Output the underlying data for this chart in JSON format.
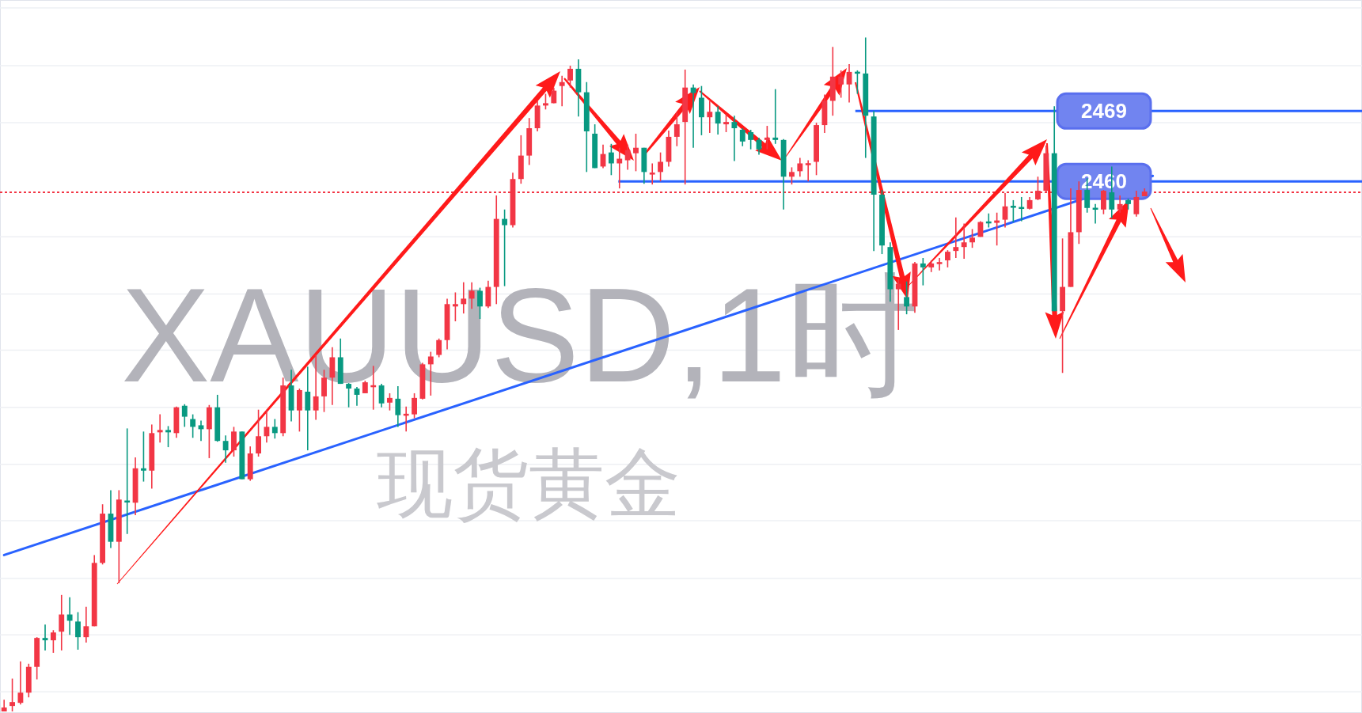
{
  "chart_data": {
    "type": "candlestick",
    "title": "XAUUSD,1时",
    "subtitle": "现货黄金",
    "categories": [
      null,
      null,
      null,
      null,
      null,
      null,
      null,
      null,
      null,
      null,
      null,
      null,
      null,
      null,
      null,
      null,
      null,
      null,
      null,
      null,
      null,
      null,
      null,
      null,
      null,
      null,
      null,
      null,
      null,
      null,
      null,
      null,
      null,
      null,
      null,
      null,
      null,
      null,
      null,
      null,
      null,
      null,
      null,
      null,
      null,
      null,
      null,
      null,
      null,
      null,
      null,
      null,
      null,
      null,
      null,
      null,
      null,
      null,
      null,
      null,
      null,
      null,
      null,
      null,
      null,
      null,
      null,
      null,
      null,
      null,
      null,
      null,
      null,
      null,
      null,
      null,
      null,
      null,
      null,
      null,
      null,
      null,
      null,
      null,
      null,
      null,
      null,
      null,
      null,
      null,
      null,
      null,
      null,
      null,
      null,
      null,
      null,
      null,
      null,
      null,
      null,
      null,
      null,
      null,
      null,
      null,
      null,
      null,
      null,
      null,
      null,
      null,
      null,
      null,
      null,
      null,
      null,
      null,
      null,
      null,
      null,
      null,
      null,
      null,
      null,
      null,
      null,
      null,
      null,
      null,
      null,
      null,
      null,
      null,
      null,
      null,
      null,
      null,
      null,
      null,
      null,
      null,
      null,
      null,
      null,
      null,
      null,
      null,
      null,
      null,
      null,
      null,
      null,
      null,
      null,
      null,
      null,
      null,
      null,
      null,
      null,
      null,
      null,
      null,
      null,
      null
    ],
    "ohlc": [
      [
        2392.2,
        2393.7,
        2392.2,
        2392.7
      ],
      [
        2392.9,
        2396.4,
        2392.2,
        2393.4
      ],
      [
        2393.3,
        2398.6,
        2393.1,
        2394.6
      ],
      [
        2394.6,
        2398.3,
        2394.0,
        2397.9
      ],
      [
        2397.9,
        2401.7,
        2396.3,
        2401.6
      ],
      [
        2401.6,
        2403.3,
        2400.0,
        2401.3
      ],
      [
        2401.3,
        2402.6,
        2399.7,
        2402.3
      ],
      [
        2402.4,
        2407.1,
        2400.0,
        2404.6
      ],
      [
        2404.6,
        2406.8,
        2402.0,
        2403.8
      ],
      [
        2403.7,
        2404.9,
        2400.1,
        2401.7
      ],
      [
        2401.7,
        2405.6,
        2401.0,
        2403.1
      ],
      [
        2403.1,
        2412.2,
        2403.1,
        2411.2
      ],
      [
        2411.2,
        2418.7,
        2411.0,
        2417.5
      ],
      [
        2417.5,
        2420.5,
        2413.1,
        2413.9
      ],
      [
        2413.9,
        2420.5,
        2408.6,
        2419.3
      ],
      [
        2419.1,
        2428.4,
        2414.9,
        2419.0
      ],
      [
        2418.9,
        2424.7,
        2417.3,
        2423.3
      ],
      [
        2423.3,
        2428.0,
        2421.6,
        2423.0
      ],
      [
        2423.0,
        2428.9,
        2420.7,
        2427.8
      ],
      [
        2427.9,
        2430.2,
        2426.6,
        2428.2
      ],
      [
        2428.2,
        2428.7,
        2426.0,
        2427.9
      ],
      [
        2427.8,
        2431.2,
        2427.2,
        2431.1
      ],
      [
        2431.3,
        2431.5,
        2428.6,
        2429.9
      ],
      [
        2429.6,
        2430.2,
        2427.2,
        2428.6
      ],
      [
        2428.8,
        2429.4,
        2426.8,
        2428.3
      ],
      [
        2428.3,
        2431.4,
        2424.6,
        2431.1
      ],
      [
        2431.1,
        2432.7,
        2426.7,
        2426.8
      ],
      [
        2426.8,
        2427.5,
        2424.0,
        2425.6
      ],
      [
        2425.6,
        2428.6,
        2424.8,
        2428.0
      ],
      [
        2428.0,
        2428.0,
        2421.9,
        2421.9
      ],
      [
        2421.9,
        2426.1,
        2421.7,
        2425.2
      ],
      [
        2425.2,
        2430.8,
        2424.8,
        2427.4
      ],
      [
        2427.4,
        2430.8,
        2426.6,
        2428.6
      ],
      [
        2428.6,
        2429.6,
        2427.1,
        2427.8
      ],
      [
        2427.8,
        2434.9,
        2427.4,
        2433.9
      ],
      [
        2433.9,
        2435.9,
        2429.3,
        2430.7
      ],
      [
        2430.7,
        2433.5,
        2428.0,
        2433.3
      ],
      [
        2433.1,
        2436.3,
        2425.6,
        2430.7
      ],
      [
        2430.7,
        2437.8,
        2429.5,
        2432.5
      ],
      [
        2432.5,
        2435.9,
        2430.5,
        2434.9
      ],
      [
        2434.9,
        2438.8,
        2431.4,
        2437.5
      ],
      [
        2437.5,
        2439.9,
        2434.1,
        2434.1
      ],
      [
        2434.1,
        2434.2,
        2431.1,
        2433.5
      ],
      [
        2433.5,
        2433.7,
        2431.3,
        2432.7
      ],
      [
        2432.9,
        2434.5,
        2432.9,
        2434.3
      ],
      [
        2433.7,
        2436.4,
        2430.8,
        2433.9
      ],
      [
        2433.9,
        2434.1,
        2431.1,
        2431.6
      ],
      [
        2431.7,
        2432.9,
        2430.7,
        2432.3
      ],
      [
        2432.2,
        2433.8,
        2428.6,
        2430.1
      ],
      [
        2430.1,
        2431.2,
        2428.0,
        2430.2
      ],
      [
        2430.2,
        2432.9,
        2429.7,
        2432.3
      ],
      [
        2432.2,
        2436.8,
        2432.1,
        2436.6
      ],
      [
        2436.6,
        2438.2,
        2432.6,
        2437.6
      ],
      [
        2437.8,
        2439.9,
        2437.5,
        2439.7
      ],
      [
        2439.7,
        2445.0,
        2438.5,
        2444.3
      ],
      [
        2444.0,
        2445.8,
        2442.1,
        2444.3
      ],
      [
        2444.3,
        2447.1,
        2443.1,
        2445.0
      ],
      [
        2445.0,
        2447.1,
        2443.7,
        2446.0
      ],
      [
        2446.0,
        2446.4,
        2442.4,
        2444.0
      ],
      [
        2444.0,
        2447.3,
        2443.8,
        2446.5
      ],
      [
        2446.5,
        2458.2,
        2444.3,
        2455.2
      ],
      [
        2455.2,
        2456.4,
        2446.6,
        2454.4
      ],
      [
        2454.4,
        2461.1,
        2454.1,
        2460.3
      ],
      [
        2460.3,
        2465.9,
        2459.7,
        2463.3
      ],
      [
        2463.3,
        2468.1,
        2462.1,
        2466.8
      ],
      [
        2466.8,
        2470.3,
        2466.4,
        2469.7
      ],
      [
        2469.7,
        2471.2,
        2469.2,
        2470.0
      ],
      [
        2470.0,
        2472.0,
        2470.0,
        2471.6
      ],
      [
        2472.2,
        2473.5,
        2469.6,
        2472.7
      ],
      [
        2472.9,
        2474.8,
        2472.0,
        2474.4
      ],
      [
        2474.4,
        2475.6,
        2468.3,
        2471.4
      ],
      [
        2471.4,
        2472.7,
        2461.2,
        2466.4
      ],
      [
        2466.1,
        2467.3,
        2461.7,
        2461.7
      ],
      [
        2461.9,
        2464.7,
        2461.7,
        2463.5
      ],
      [
        2463.7,
        2464.8,
        2460.8,
        2462.3
      ],
      [
        2462.3,
        2464.3,
        2459.1,
        2462.9
      ],
      [
        2462.7,
        2464.7,
        2461.5,
        2464.0
      ],
      [
        2463.6,
        2466.1,
        2461.3,
        2464.3
      ],
      [
        2464.3,
        2464.3,
        2459.7,
        2461.2
      ],
      [
        2460.9,
        2462.3,
        2459.6,
        2461.1
      ],
      [
        2461.2,
        2463.7,
        2460.0,
        2462.5
      ],
      [
        2462.5,
        2466.5,
        2461.9,
        2465.7
      ],
      [
        2465.7,
        2468.8,
        2464.5,
        2467.3
      ],
      [
        2467.6,
        2474.3,
        2459.6,
        2472.0
      ],
      [
        2472.0,
        2472.4,
        2464.3,
        2471.3
      ],
      [
        2470.7,
        2472.2,
        2465.9,
        2468.2
      ],
      [
        2468.2,
        2470.3,
        2466.2,
        2468.9
      ],
      [
        2468.9,
        2469.6,
        2466.0,
        2467.4
      ],
      [
        2467.3,
        2468.6,
        2466.3,
        2467.6
      ],
      [
        2467.6,
        2468.4,
        2462.6,
        2466.8
      ],
      [
        2466.6,
        2466.8,
        2464.5,
        2465.1
      ],
      [
        2466.3,
        2466.6,
        2464.1,
        2465.3
      ],
      [
        2465.3,
        2465.6,
        2463.4,
        2464.1
      ],
      [
        2465.3,
        2467.1,
        2464.1,
        2465.6
      ],
      [
        2465.6,
        2471.8,
        2464.8,
        2465.3
      ],
      [
        2465.3,
        2465.4,
        2456.4,
        2460.6
      ],
      [
        2460.6,
        2461.8,
        2459.6,
        2461.2
      ],
      [
        2461.3,
        2463.0,
        2460.6,
        2462.3
      ],
      [
        2462.1,
        2462.7,
        2460.0,
        2462.3
      ],
      [
        2462.5,
        2467.5,
        2460.8,
        2467.2
      ],
      [
        2467.2,
        2471.1,
        2466.2,
        2470.3
      ],
      [
        2470.3,
        2477.2,
        2468.4,
        2473.4
      ],
      [
        2472.4,
        2474.2,
        2470.7,
        2473.4
      ],
      [
        2472.4,
        2475.0,
        2470.1,
        2474.0
      ],
      [
        2474.0,
        2474.2,
        2471.2,
        2473.8
      ],
      [
        2473.8,
        2478.4,
        2463.0,
        2468.4
      ],
      [
        2468.3,
        2469.0,
        2451.1,
        2458.3
      ],
      [
        2458.3,
        2458.9,
        2450.7,
        2451.8
      ],
      [
        2451.6,
        2452.2,
        2444.6,
        2446.2
      ],
      [
        2446.2,
        2447.5,
        2441.0,
        2446.9
      ],
      [
        2445.2,
        2447.2,
        2443.0,
        2444.0
      ],
      [
        2444.0,
        2449.7,
        2443.2,
        2449.5
      ],
      [
        2449.5,
        2450.2,
        2446.7,
        2449.0
      ],
      [
        2449.0,
        2449.9,
        2448.4,
        2449.5
      ],
      [
        2449.5,
        2450.2,
        2448.6,
        2449.6
      ],
      [
        2449.9,
        2451.2,
        2449.0,
        2451.0
      ],
      [
        2451.1,
        2455.4,
        2450.2,
        2451.6
      ],
      [
        2451.6,
        2454.6,
        2450.1,
        2452.2
      ],
      [
        2452.2,
        2453.9,
        2451.5,
        2452.8
      ],
      [
        2452.9,
        2454.9,
        2452.9,
        2454.8
      ],
      [
        2454.8,
        2455.9,
        2454.1,
        2454.7
      ],
      [
        2454.7,
        2456.0,
        2451.8,
        2455.0
      ],
      [
        2455.1,
        2458.5,
        2454.1,
        2456.8
      ],
      [
        2456.8,
        2457.6,
        2454.8,
        2456.7
      ],
      [
        2456.7,
        2458.0,
        2454.9,
        2456.5
      ],
      [
        2456.5,
        2458.0,
        2456.4,
        2457.6
      ],
      [
        2457.7,
        2460.6,
        2457.6,
        2458.8
      ],
      [
        2458.8,
        2464.6,
        2458.6,
        2463.6
      ],
      [
        2463.6,
        2469.6,
        2443.4,
        2443.4
      ],
      [
        2443.4,
        2452.7,
        2435.5,
        2446.5
      ],
      [
        2446.5,
        2459.1,
        2446.5,
        2453.5
      ],
      [
        2453.5,
        2460.0,
        2452.0,
        2458.9
      ],
      [
        2458.9,
        2460.4,
        2456.0,
        2456.6
      ],
      [
        2456.6,
        2457.1,
        2454.6,
        2456.4
      ],
      [
        2456.4,
        2458.9,
        2455.8,
        2458.8
      ],
      [
        2458.6,
        2461.9,
        2455.3,
        2456.4
      ],
      [
        2456.4,
        2458.2,
        2456.0,
        2457.1
      ],
      [
        2457.6,
        2457.8,
        2456.4,
        2457.1
      ],
      [
        2455.8,
        2458.8,
        2455.5,
        2458.0
      ],
      [
        2458.1,
        2459.1,
        2458.1,
        2458.7
      ],
      null,
      null,
      null,
      null,
      null,
      null,
      null,
      null,
      null,
      null,
      null,
      null,
      null,
      null,
      null,
      null,
      null,
      null,
      null,
      null,
      null,
      null,
      null,
      null,
      null,
      null
    ],
    "series": [
      {
        "type": "line",
        "color": "#2962ff",
        "values": [
          2412.2,
          null,
          null,
          null,
          null,
          null,
          null,
          null,
          null,
          null,
          null,
          null,
          null,
          null,
          null,
          null,
          null,
          null,
          null,
          null,
          null,
          null,
          null,
          null,
          null,
          null,
          null,
          null,
          null,
          null,
          null,
          null,
          null,
          null,
          null,
          null,
          null,
          null,
          null,
          null,
          null,
          null,
          null,
          null,
          null,
          null,
          null,
          null,
          null,
          null,
          null,
          null,
          null,
          null,
          null,
          null,
          null,
          null,
          null,
          null,
          null,
          null,
          null,
          null,
          null,
          null,
          null,
          null,
          null,
          null,
          null,
          null,
          null,
          null,
          null,
          null,
          null,
          null,
          null,
          null,
          null,
          null,
          null,
          null,
          null,
          null,
          null,
          null,
          null,
          null,
          null,
          null,
          null,
          null,
          null,
          null,
          null,
          null,
          null,
          null,
          null,
          null,
          null,
          null,
          null,
          null,
          null,
          null,
          null,
          null,
          null,
          null,
          null,
          null,
          null,
          null,
          null,
          null,
          null,
          null,
          null,
          null,
          null,
          null,
          null,
          null,
          null,
          null,
          null,
          null,
          null,
          null,
          null,
          null,
          null,
          null,
          null,
          null,
          null,
          null,
          2460.7,
          null,
          null,
          null,
          null,
          null,
          null,
          null,
          null,
          null,
          null,
          null,
          null,
          null,
          null,
          null,
          null,
          null,
          null,
          null,
          null,
          null,
          null,
          null,
          null,
          null
        ]
      }
    ],
    "ylim": [
      2392.0,
      2483.2
    ],
    "yticks": [
      {
        "value": 2482.2,
        "label": null
      },
      {
        "value": 2474.8,
        "label": null
      },
      2469,
      {
        "value": 2467.5,
        "label": null
      },
      2460,
      {
        "value": 2452.9,
        "label": null
      },
      {
        "value": 2445.6,
        "label": null
      },
      {
        "value": 2438.4,
        "label": null
      },
      {
        "value": 2431.1,
        "label": null
      },
      {
        "value": 2423.8,
        "label": null
      },
      {
        "value": 2416.6,
        "label": null
      },
      {
        "value": 2409.2,
        "label": null
      },
      {
        "value": 2402.0,
        "label": null
      },
      {
        "value": 2394.7,
        "label": null
      }
    ],
    "grid": "y",
    "ref_lines": [
      {
        "axis": "y",
        "value": 2469,
        "color": "#2962ff"
      },
      {
        "axis": "y",
        "value": 2460,
        "color": "#2962ff"
      },
      {
        "axis": "y",
        "value": 2458.6,
        "color": "#f23645",
        "line_style": "dotted"
      }
    ]
  }
}
